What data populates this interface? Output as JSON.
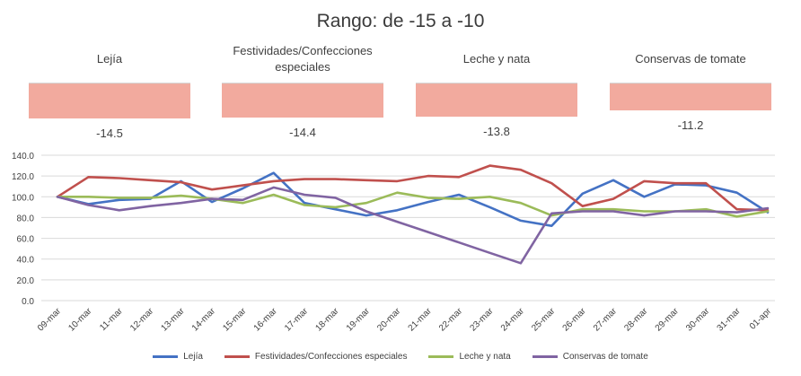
{
  "chart_data": [
    {
      "type": "bar",
      "title": "Rango: de -15 a -10",
      "categories": [
        "Lejía",
        "Festividades/Confecciones especiales",
        "Leche y nata",
        "Conservas de tomate"
      ],
      "values": [
        -14.5,
        -14.4,
        -13.8,
        -11.2
      ],
      "value_labels": [
        "-14.5",
        "-14.4",
        "-13.8",
        "-11.2"
      ],
      "ylim": [
        -15,
        0
      ],
      "color": "#f2aa9e"
    },
    {
      "type": "line",
      "x": [
        "09-mar",
        "10-mar",
        "11-mar",
        "12-mar",
        "13-mar",
        "14-mar",
        "15-mar",
        "16-mar",
        "17-mar",
        "18-mar",
        "19-mar",
        "20-mar",
        "21-mar",
        "22-mar",
        "23-mar",
        "24-mar",
        "25-mar",
        "26-mar",
        "27-mar",
        "28-mar",
        "29-mar",
        "30-mar",
        "31-mar",
        "01-apr"
      ],
      "yticks": [
        "0.0",
        "20.0",
        "40.0",
        "60.0",
        "80.0",
        "100.0",
        "120.0",
        "140.0"
      ],
      "ylim": [
        0,
        140
      ],
      "grid": true,
      "legend_position": "bottom",
      "series": [
        {
          "name": "Lejía",
          "color": "#4472c4",
          "values": [
            100,
            93,
            97,
            98,
            115,
            95,
            108,
            123,
            94,
            88,
            82,
            87,
            95,
            102,
            90,
            77,
            72,
            103,
            116,
            100,
            112,
            111,
            104,
            85
          ]
        },
        {
          "name": "Festividades/Confecciones especiales",
          "color": "#c0504d",
          "values": [
            100,
            119,
            118,
            116,
            114,
            107,
            111,
            115,
            117,
            117,
            116,
            115,
            120,
            119,
            130,
            126,
            113,
            91,
            98,
            115,
            113,
            113,
            88,
            87
          ]
        },
        {
          "name": "Leche y nata",
          "color": "#9bbb59",
          "values": [
            100,
            100,
            99,
            99,
            101,
            98,
            94,
            102,
            92,
            90,
            94,
            104,
            99,
            98,
            100,
            94,
            82,
            88,
            88,
            86,
            86,
            88,
            81,
            86
          ]
        },
        {
          "name": "Conservas de tomate",
          "color": "#8064a2",
          "values": [
            100,
            92,
            87,
            91,
            94,
            98,
            97,
            109,
            102,
            99,
            86,
            76,
            66,
            56,
            46,
            36,
            84,
            86,
            86,
            82,
            86,
            86,
            85,
            89
          ]
        }
      ]
    }
  ]
}
